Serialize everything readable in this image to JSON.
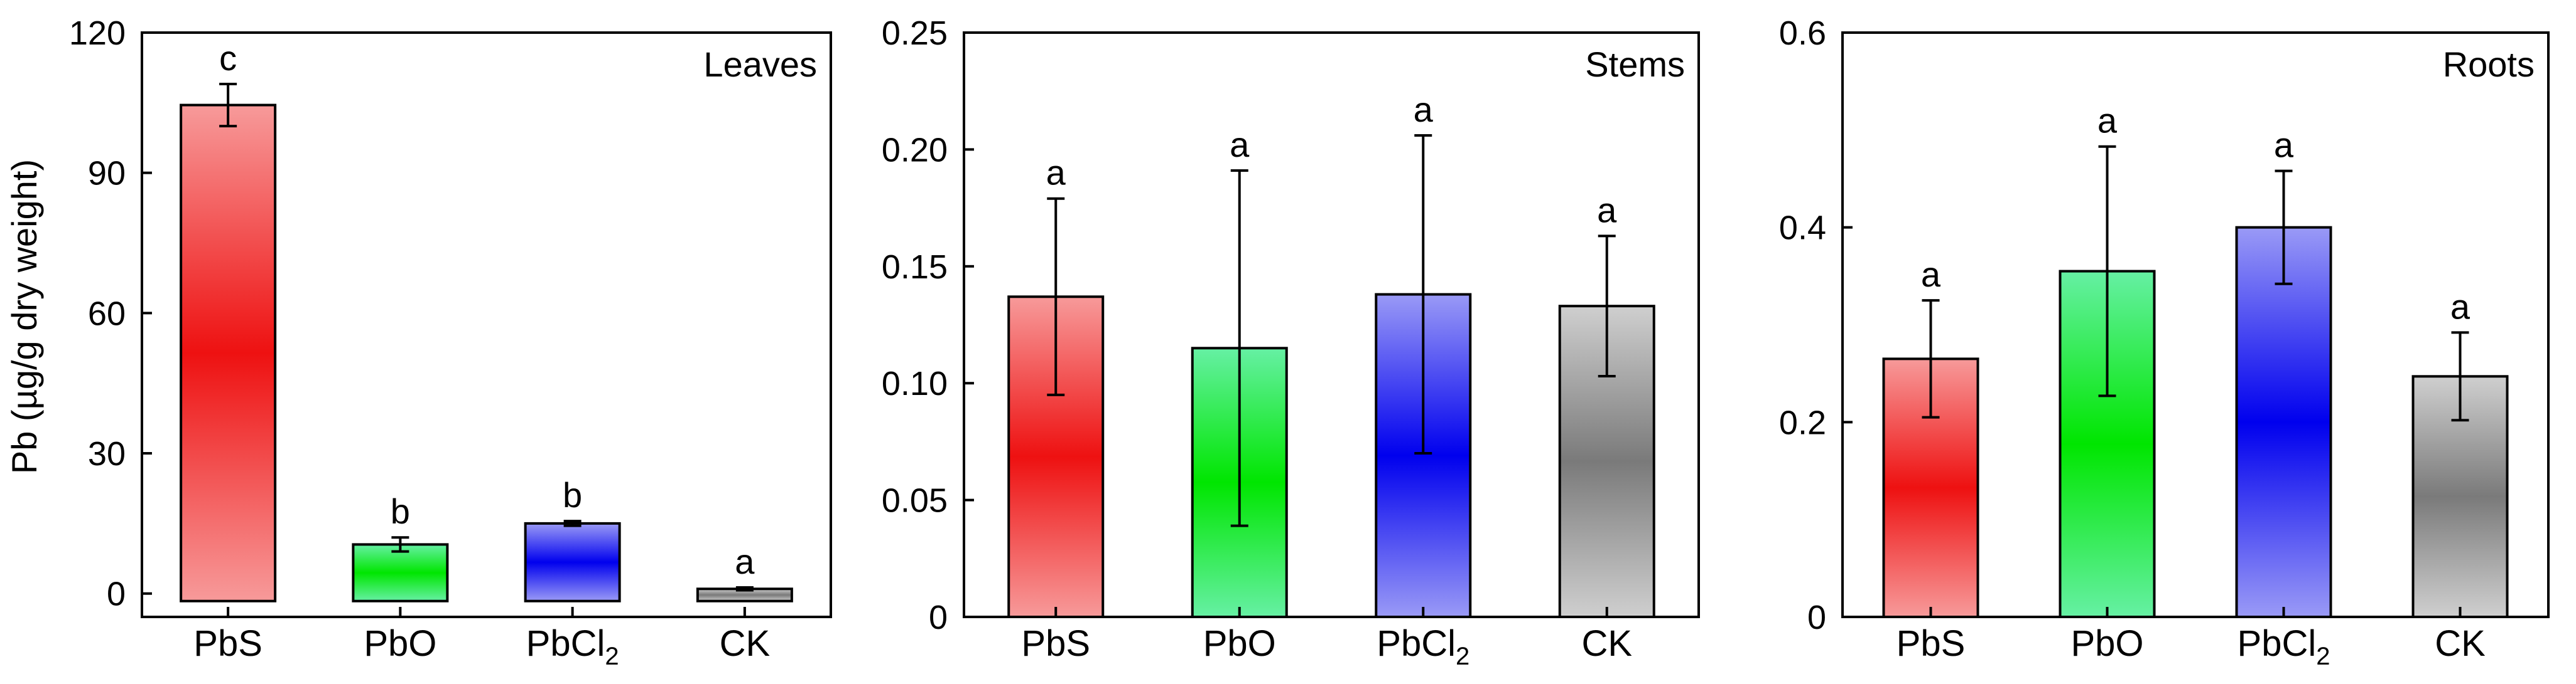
{
  "y_axis_title": "Pb (µg/g dry weight)",
  "colors": {
    "PbS": [
      "#f79a9a",
      "#ee1111"
    ],
    "PbO": [
      "#66f0a4",
      "#00e600"
    ],
    "PbCl2": [
      "#9a9af6",
      "#0000ee"
    ],
    "CK": [
      "#cfcfcf",
      "#7a7a7a"
    ]
  },
  "chart_data": [
    {
      "type": "bar",
      "title": "Leaves",
      "categories": [
        "PbS",
        "PbO",
        "PbCl2",
        "CK"
      ],
      "category_display": [
        {
          "main": "PbS",
          "sub": "",
          "tail": ""
        },
        {
          "main": "PbO",
          "sub": "",
          "tail": ""
        },
        {
          "main": "PbCl",
          "sub": "2",
          "tail": ""
        },
        {
          "main": "CK",
          "sub": "",
          "tail": ""
        }
      ],
      "values": [
        104.5,
        10.5,
        15,
        1
      ],
      "errors": [
        4.5,
        1.5,
        0.5,
        0.3
      ],
      "letters": [
        "c",
        "b",
        "b",
        "a"
      ],
      "ylim": [
        -5,
        120
      ],
      "yticks": [
        0,
        30,
        60,
        90,
        120
      ],
      "ytick_labels": [
        "0",
        "30",
        "60",
        "90",
        "120"
      ],
      "ylabel": "Pb (µg/g dry weight)",
      "xlabel": ""
    },
    {
      "type": "bar",
      "title": "Stems",
      "categories": [
        "PbS",
        "PbO",
        "PbCl2",
        "CK"
      ],
      "category_display": [
        {
          "main": "PbS",
          "sub": "",
          "tail": ""
        },
        {
          "main": "PbO",
          "sub": "",
          "tail": ""
        },
        {
          "main": "PbCl",
          "sub": "2",
          "tail": ""
        },
        {
          "main": "CK",
          "sub": "",
          "tail": ""
        }
      ],
      "values": [
        0.137,
        0.115,
        0.138,
        0.133
      ],
      "errors": [
        0.042,
        0.076,
        0.068,
        0.03
      ],
      "letters": [
        "a",
        "a",
        "a",
        "a"
      ],
      "ylim": [
        0,
        0.25
      ],
      "yticks": [
        0,
        0.05,
        0.1,
        0.15,
        0.2,
        0.25
      ],
      "ytick_labels": [
        "0",
        "0.05",
        "0.10",
        "0.15",
        "0.20",
        "0.25"
      ],
      "ylabel": "",
      "xlabel": ""
    },
    {
      "type": "bar",
      "title": "Roots",
      "categories": [
        "PbS",
        "PbO",
        "PbCl2",
        "CK"
      ],
      "category_display": [
        {
          "main": "PbS",
          "sub": "",
          "tail": ""
        },
        {
          "main": "PbO",
          "sub": "",
          "tail": ""
        },
        {
          "main": "PbCl",
          "sub": "2",
          "tail": ""
        },
        {
          "main": "CK",
          "sub": "",
          "tail": ""
        }
      ],
      "values": [
        0.265,
        0.355,
        0.4,
        0.247
      ],
      "errors": [
        0.06,
        0.128,
        0.058,
        0.045
      ],
      "letters": [
        "a",
        "a",
        "a",
        "a"
      ],
      "ylim": [
        0,
        0.6
      ],
      "yticks": [
        0,
        0.2,
        0.4,
        0.6
      ],
      "ytick_labels": [
        "0",
        "0.2",
        "0.4",
        "0.6"
      ],
      "ylabel": "",
      "xlabel": ""
    }
  ]
}
